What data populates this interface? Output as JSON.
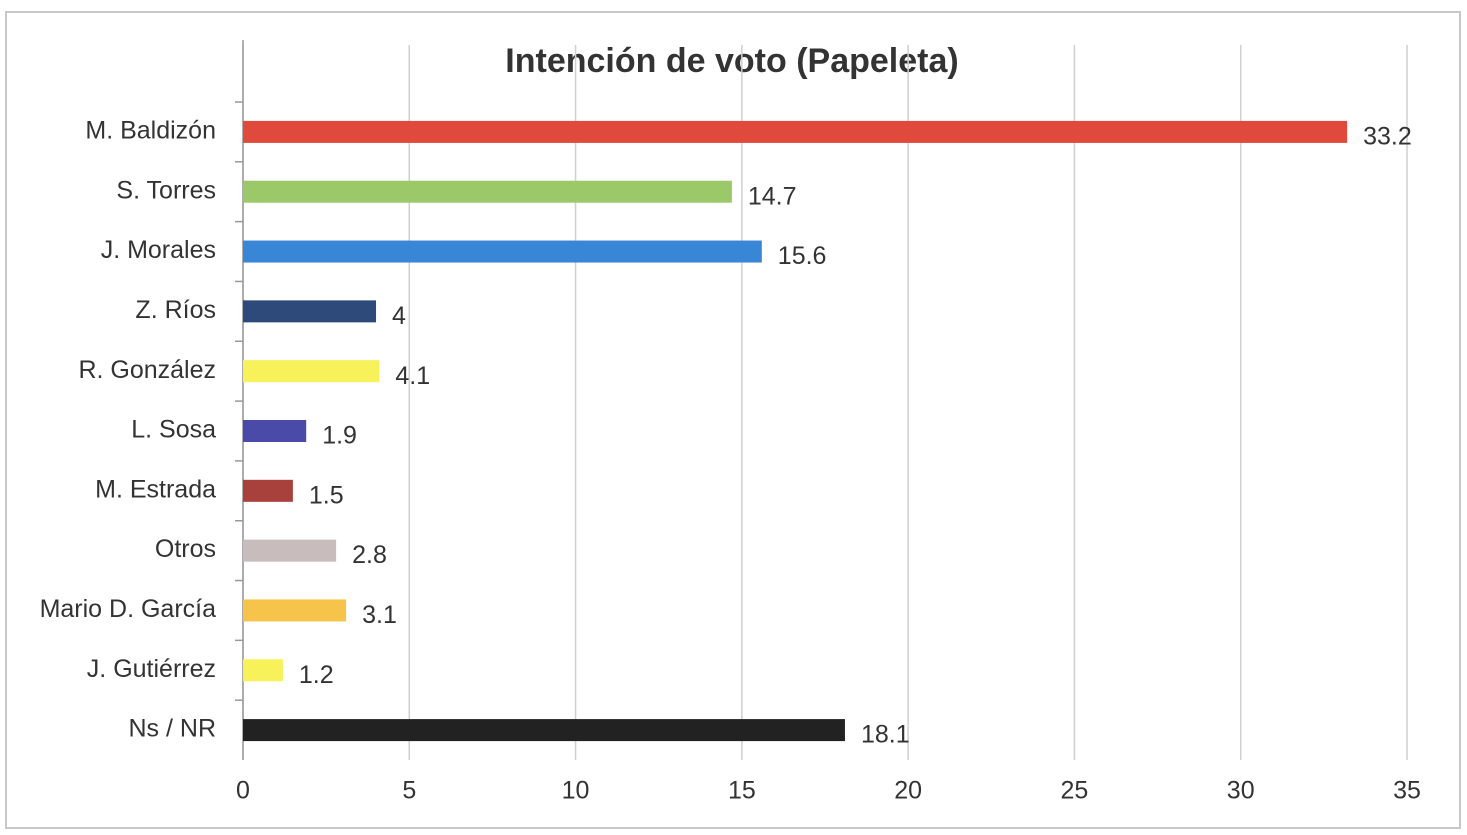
{
  "chart_data": {
    "type": "hbar",
    "title": "Intención de voto (Papeleta)",
    "categories": [
      "M. Baldizón",
      "S. Torres",
      "J. Morales",
      "Z. Ríos",
      "R. González",
      "L. Sosa",
      "M. Estrada",
      "Otros",
      "Mario D. García",
      "J. Gutiérrez",
      "Ns / NR"
    ],
    "values": [
      33.2,
      14.7,
      15.6,
      4,
      4.1,
      1.9,
      1.5,
      2.8,
      3.1,
      1.2,
      18.1
    ],
    "colors": [
      "#e04a3c",
      "#9bc96a",
      "#3a86d6",
      "#2e4a7a",
      "#f7f25a",
      "#4a4aa8",
      "#a8403c",
      "#c8bcbc",
      "#f6c44a",
      "#f7f25a",
      "#222222"
    ],
    "xlim": [
      0,
      35
    ],
    "xticks": [
      0,
      5,
      10,
      15,
      20,
      25,
      30,
      35
    ],
    "grid": true
  }
}
